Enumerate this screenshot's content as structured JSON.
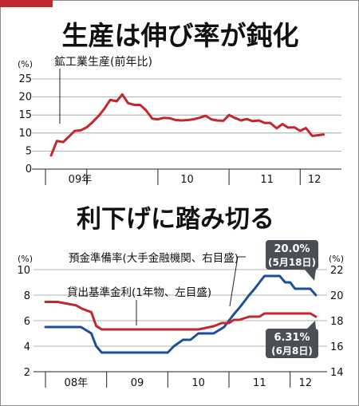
{
  "colors": {
    "accent": "#c0282d",
    "navy": "#1f4e99",
    "callout": "#4a4f57",
    "grid": "#999999"
  },
  "chart_data": [
    {
      "type": "line",
      "title": "生産は伸び率が鈍化",
      "unit_label": "(%)",
      "y_ticks": [
        "25",
        "20",
        "15",
        "10",
        "5",
        "0"
      ],
      "ylim": [
        0,
        25
      ],
      "x_tick_labels": [
        "09年",
        "10",
        "11",
        "12"
      ],
      "series": [
        {
          "name": "鉱工業生産(前年比)",
          "color": "#c0282d",
          "x": [
            2008.5,
            2008.58,
            2008.67,
            2008.75,
            2008.83,
            2008.92,
            2009.0,
            2009.08,
            2009.17,
            2009.25,
            2009.33,
            2009.42,
            2009.5,
            2009.58,
            2009.67,
            2009.75,
            2009.83,
            2009.92,
            2010.0,
            2010.08,
            2010.17,
            2010.25,
            2010.33,
            2010.42,
            2010.5,
            2010.58,
            2010.67,
            2010.75,
            2010.83,
            2010.92,
            2011.0,
            2011.08,
            2011.17,
            2011.25,
            2011.33,
            2011.42,
            2011.5,
            2011.58,
            2011.67,
            2011.75,
            2011.83,
            2011.92,
            2012.0,
            2012.08,
            2012.17,
            2012.25,
            2012.33
          ],
          "values": [
            3.8,
            7.8,
            7.5,
            9.0,
            10.6,
            10.8,
            11.6,
            13.0,
            14.8,
            16.8,
            19.2,
            18.8,
            20.7,
            18.3,
            17.8,
            17.8,
            16.4,
            14.0,
            13.8,
            14.2,
            14.1,
            13.6,
            13.5,
            13.6,
            13.8,
            14.2,
            14.8,
            13.8,
            13.5,
            13.4,
            15.0,
            14.2,
            13.5,
            13.9,
            13.3,
            13.5,
            12.8,
            12.8,
            11.3,
            12.5,
            11.5,
            11.6,
            10.6,
            11.4,
            9.2,
            9.4,
            9.6
          ]
        }
      ]
    },
    {
      "type": "line",
      "title": "利下げに踏み切る",
      "unit_label_left": "(%)",
      "unit_label_right": "(%)",
      "y_ticks_left": [
        "10",
        "8",
        "6",
        "4",
        "2"
      ],
      "y_ticks_right": [
        "22",
        "20",
        "18",
        "16",
        "14"
      ],
      "ylim_left": [
        2,
        10
      ],
      "ylim_right": [
        14,
        22
      ],
      "x_tick_labels": [
        "08年",
        "09",
        "10",
        "11",
        "12"
      ],
      "series": [
        {
          "name": "預金準備率(大手金融機関、右目盛)",
          "axis": "right",
          "color": "#1f4e99",
          "x": [
            2008.0,
            2008.58,
            2008.75,
            2008.83,
            2008.92,
            2009.0,
            2009.25,
            2009.5,
            2009.75,
            2010.0,
            2010.1,
            2010.25,
            2010.37,
            2010.5,
            2010.75,
            2010.92,
            2011.0,
            2011.08,
            2011.17,
            2011.25,
            2011.33,
            2011.42,
            2011.5,
            2011.58,
            2011.67,
            2011.75,
            2011.83,
            2011.92,
            2012.0,
            2012.08,
            2012.17,
            2012.25,
            2012.33,
            2012.42
          ],
          "values": [
            17.5,
            17.5,
            17.0,
            16.0,
            15.5,
            15.5,
            15.5,
            15.5,
            15.5,
            15.5,
            16.0,
            16.5,
            16.5,
            17.0,
            17.0,
            17.5,
            18.0,
            18.5,
            19.0,
            19.5,
            20.0,
            20.5,
            21.0,
            21.5,
            21.5,
            21.5,
            21.5,
            21.0,
            21.0,
            20.5,
            20.5,
            20.5,
            20.5,
            20.0
          ]
        },
        {
          "name": "貸出基準金利(1年物、左目盛)",
          "axis": "left",
          "color": "#c0282d",
          "x": [
            2008.0,
            2008.2,
            2008.5,
            2008.6,
            2008.75,
            2008.83,
            2008.92,
            2009.0,
            2009.5,
            2010.0,
            2010.5,
            2010.75,
            2010.88,
            2011.0,
            2011.08,
            2011.17,
            2011.33,
            2011.5,
            2011.58,
            2011.75,
            2012.0,
            2012.33,
            2012.42
          ],
          "values": [
            7.47,
            7.47,
            7.2,
            6.93,
            6.66,
            5.58,
            5.31,
            5.31,
            5.31,
            5.31,
            5.31,
            5.56,
            5.81,
            5.81,
            6.06,
            6.06,
            6.31,
            6.31,
            6.56,
            6.56,
            6.56,
            6.56,
            6.31
          ]
        }
      ],
      "callouts": [
        {
          "line1": "20.0%",
          "line2": "(5月18日)"
        },
        {
          "line1": "6.31%",
          "line2": "(6月8日)"
        }
      ]
    }
  ]
}
